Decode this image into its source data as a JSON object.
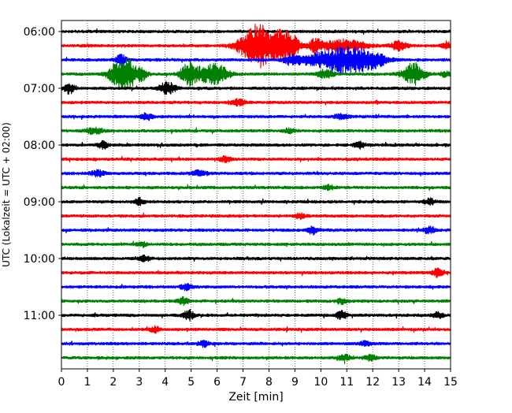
{
  "chart_data": {
    "type": "line",
    "subtype": "helicorder",
    "xlabel": "Zeit  [min]",
    "ylabel": "UTC (Lokalzeit = UTC + 02:00)",
    "xlim": [
      0,
      15
    ],
    "x_ticks": [
      "0",
      "1",
      "2",
      "3",
      "4",
      "5",
      "6",
      "7",
      "8",
      "9",
      "10",
      "11",
      "12",
      "13",
      "14",
      "15"
    ],
    "y_ticks": [
      "06:00",
      "07:00",
      "08:00",
      "09:00",
      "10:00",
      "11:00"
    ],
    "grid_x": true,
    "grid_style": "dotted",
    "start_time": "06:00",
    "trace_interval_min": 15,
    "color_cycle": [
      "#000000",
      "#ff0000",
      "#0000ff",
      "#008000"
    ],
    "traces": [
      {
        "start": "06:00",
        "events": []
      },
      {
        "start": "06:15",
        "events": [
          {
            "t": 7.2,
            "a": 0.9,
            "w": 0.5
          },
          {
            "t": 7.6,
            "a": 1.0,
            "w": 0.4
          },
          {
            "t": 8.0,
            "a": 1.0,
            "w": 0.5
          },
          {
            "t": 8.5,
            "a": 0.95,
            "w": 0.3
          },
          {
            "t": 8.9,
            "a": 0.9,
            "w": 0.3
          },
          {
            "t": 9.8,
            "a": 0.6,
            "w": 0.3
          },
          {
            "t": 10.6,
            "a": 0.45,
            "w": 0.4
          },
          {
            "t": 11.3,
            "a": 0.4,
            "w": 0.6
          },
          {
            "t": 13.0,
            "a": 0.4,
            "w": 0.3
          },
          {
            "t": 14.9,
            "a": 0.3,
            "w": 0.2
          }
        ]
      },
      {
        "start": "06:30",
        "events": [
          {
            "t": 2.3,
            "a": 0.45,
            "w": 0.2
          },
          {
            "t": 8.9,
            "a": 0.5,
            "w": 0.3
          },
          {
            "t": 9.6,
            "a": 0.5,
            "w": 0.4
          },
          {
            "t": 10.3,
            "a": 0.6,
            "w": 0.5
          },
          {
            "t": 10.9,
            "a": 0.8,
            "w": 0.5
          },
          {
            "t": 11.5,
            "a": 0.75,
            "w": 0.5
          },
          {
            "t": 12.1,
            "a": 0.55,
            "w": 0.5
          }
        ]
      },
      {
        "start": "06:45",
        "events": [
          {
            "t": 2.2,
            "a": 1.0,
            "w": 0.4
          },
          {
            "t": 2.6,
            "a": 1.0,
            "w": 0.3
          },
          {
            "t": 3.1,
            "a": 0.6,
            "w": 0.2
          },
          {
            "t": 4.9,
            "a": 1.0,
            "w": 0.3
          },
          {
            "t": 5.6,
            "a": 0.6,
            "w": 0.5
          },
          {
            "t": 6.1,
            "a": 0.6,
            "w": 0.4
          },
          {
            "t": 10.2,
            "a": 0.4,
            "w": 0.3
          },
          {
            "t": 13.6,
            "a": 1.0,
            "w": 0.4
          },
          {
            "t": 14.8,
            "a": 0.25,
            "w": 0.2
          }
        ]
      },
      {
        "start": "07:00",
        "events": [
          {
            "t": 0.3,
            "a": 0.45,
            "w": 0.2
          },
          {
            "t": 4.1,
            "a": 0.55,
            "w": 0.3
          }
        ]
      },
      {
        "start": "07:15",
        "events": [
          {
            "t": 6.8,
            "a": 0.25,
            "w": 0.3
          }
        ]
      },
      {
        "start": "07:30",
        "events": [
          {
            "t": 3.3,
            "a": 0.3,
            "w": 0.2
          },
          {
            "t": 10.8,
            "a": 0.2,
            "w": 0.3
          }
        ]
      },
      {
        "start": "07:45",
        "events": [
          {
            "t": 1.3,
            "a": 0.3,
            "w": 0.3
          },
          {
            "t": 8.8,
            "a": 0.2,
            "w": 0.2
          }
        ]
      },
      {
        "start": "08:00",
        "events": [
          {
            "t": 1.6,
            "a": 0.3,
            "w": 0.2
          },
          {
            "t": 11.5,
            "a": 0.25,
            "w": 0.2
          }
        ]
      },
      {
        "start": "08:15",
        "events": [
          {
            "t": 6.3,
            "a": 0.25,
            "w": 0.2
          }
        ]
      },
      {
        "start": "08:30",
        "events": [
          {
            "t": 1.4,
            "a": 0.25,
            "w": 0.3
          },
          {
            "t": 5.3,
            "a": 0.25,
            "w": 0.3
          }
        ]
      },
      {
        "start": "08:45",
        "events": [
          {
            "t": 10.3,
            "a": 0.2,
            "w": 0.2
          }
        ]
      },
      {
        "start": "09:00",
        "events": [
          {
            "t": 3.0,
            "a": 0.3,
            "w": 0.2
          },
          {
            "t": 14.2,
            "a": 0.3,
            "w": 0.2
          }
        ]
      },
      {
        "start": "09:15",
        "events": [
          {
            "t": 9.2,
            "a": 0.25,
            "w": 0.2
          }
        ]
      },
      {
        "start": "09:30",
        "events": [
          {
            "t": 9.7,
            "a": 0.35,
            "w": 0.2
          },
          {
            "t": 14.2,
            "a": 0.3,
            "w": 0.2
          }
        ]
      },
      {
        "start": "09:45",
        "events": [
          {
            "t": 3.1,
            "a": 0.2,
            "w": 0.2
          }
        ]
      },
      {
        "start": "10:00",
        "events": [
          {
            "t": 3.2,
            "a": 0.25,
            "w": 0.2
          }
        ]
      },
      {
        "start": "10:15",
        "events": [
          {
            "t": 14.5,
            "a": 0.35,
            "w": 0.2
          }
        ]
      },
      {
        "start": "10:30",
        "events": [
          {
            "t": 4.8,
            "a": 0.25,
            "w": 0.2
          }
        ]
      },
      {
        "start": "10:45",
        "events": [
          {
            "t": 4.7,
            "a": 0.3,
            "w": 0.2
          },
          {
            "t": 10.8,
            "a": 0.25,
            "w": 0.2
          }
        ]
      },
      {
        "start": "11:00",
        "events": [
          {
            "t": 4.9,
            "a": 0.45,
            "w": 0.2
          },
          {
            "t": 10.8,
            "a": 0.35,
            "w": 0.2
          },
          {
            "t": 14.5,
            "a": 0.3,
            "w": 0.2
          }
        ]
      },
      {
        "start": "11:15",
        "events": [
          {
            "t": 3.6,
            "a": 0.25,
            "w": 0.2
          }
        ]
      },
      {
        "start": "11:30",
        "events": [
          {
            "t": 5.5,
            "a": 0.25,
            "w": 0.2
          },
          {
            "t": 11.7,
            "a": 0.2,
            "w": 0.2
          }
        ]
      },
      {
        "start": "11:45",
        "events": [
          {
            "t": 10.9,
            "a": 0.3,
            "w": 0.2
          },
          {
            "t": 11.9,
            "a": 0.25,
            "w": 0.2
          }
        ]
      }
    ]
  }
}
